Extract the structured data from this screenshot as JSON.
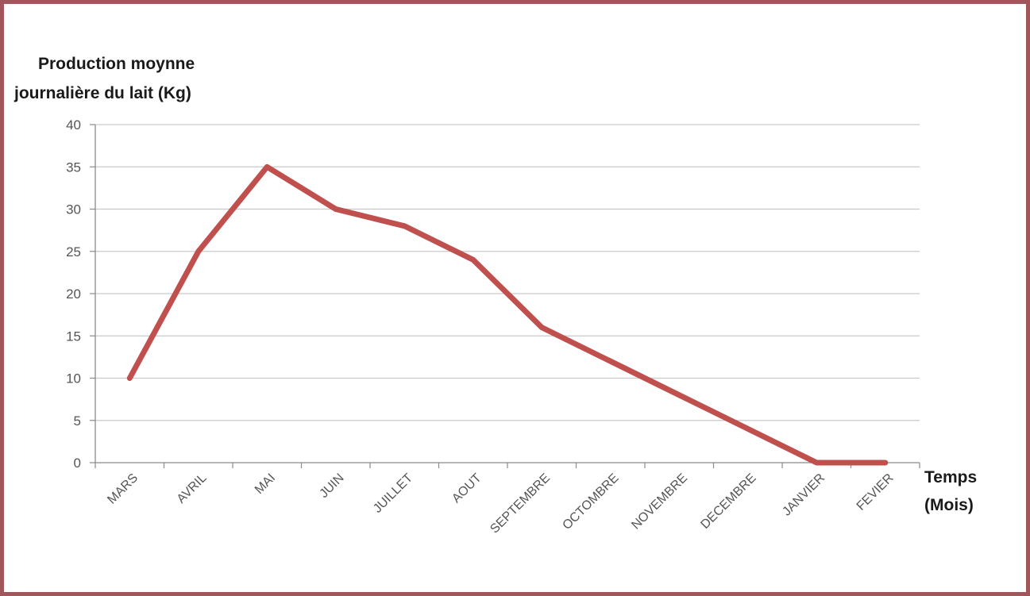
{
  "chart_data": {
    "type": "line",
    "ylabel_lines": [
      "Production moynne",
      "journalière du lait (Kg)"
    ],
    "xlabel_lines": [
      "Temps",
      "(Mois)"
    ],
    "categories": [
      "MARS",
      "AVRIL",
      "MAI",
      "JUIN",
      "JUILLET",
      "AOUT",
      "SEPTEMBRE",
      "OCTOMBRE",
      "NOVEMBRE",
      "DECEMBRE",
      "JANVIER",
      "FEVIER"
    ],
    "series": [
      {
        "values": [
          10,
          25,
          35,
          30,
          28,
          24,
          16,
          12,
          8,
          4,
          0,
          0
        ],
        "color": "#c0504d"
      }
    ],
    "ylim": [
      0,
      40
    ],
    "yticks": [
      0,
      5,
      10,
      15,
      20,
      25,
      30,
      35,
      40
    ],
    "grid": true,
    "legend": "none"
  },
  "colors": {
    "frame": "#a0565a",
    "series": "#c0504d"
  }
}
